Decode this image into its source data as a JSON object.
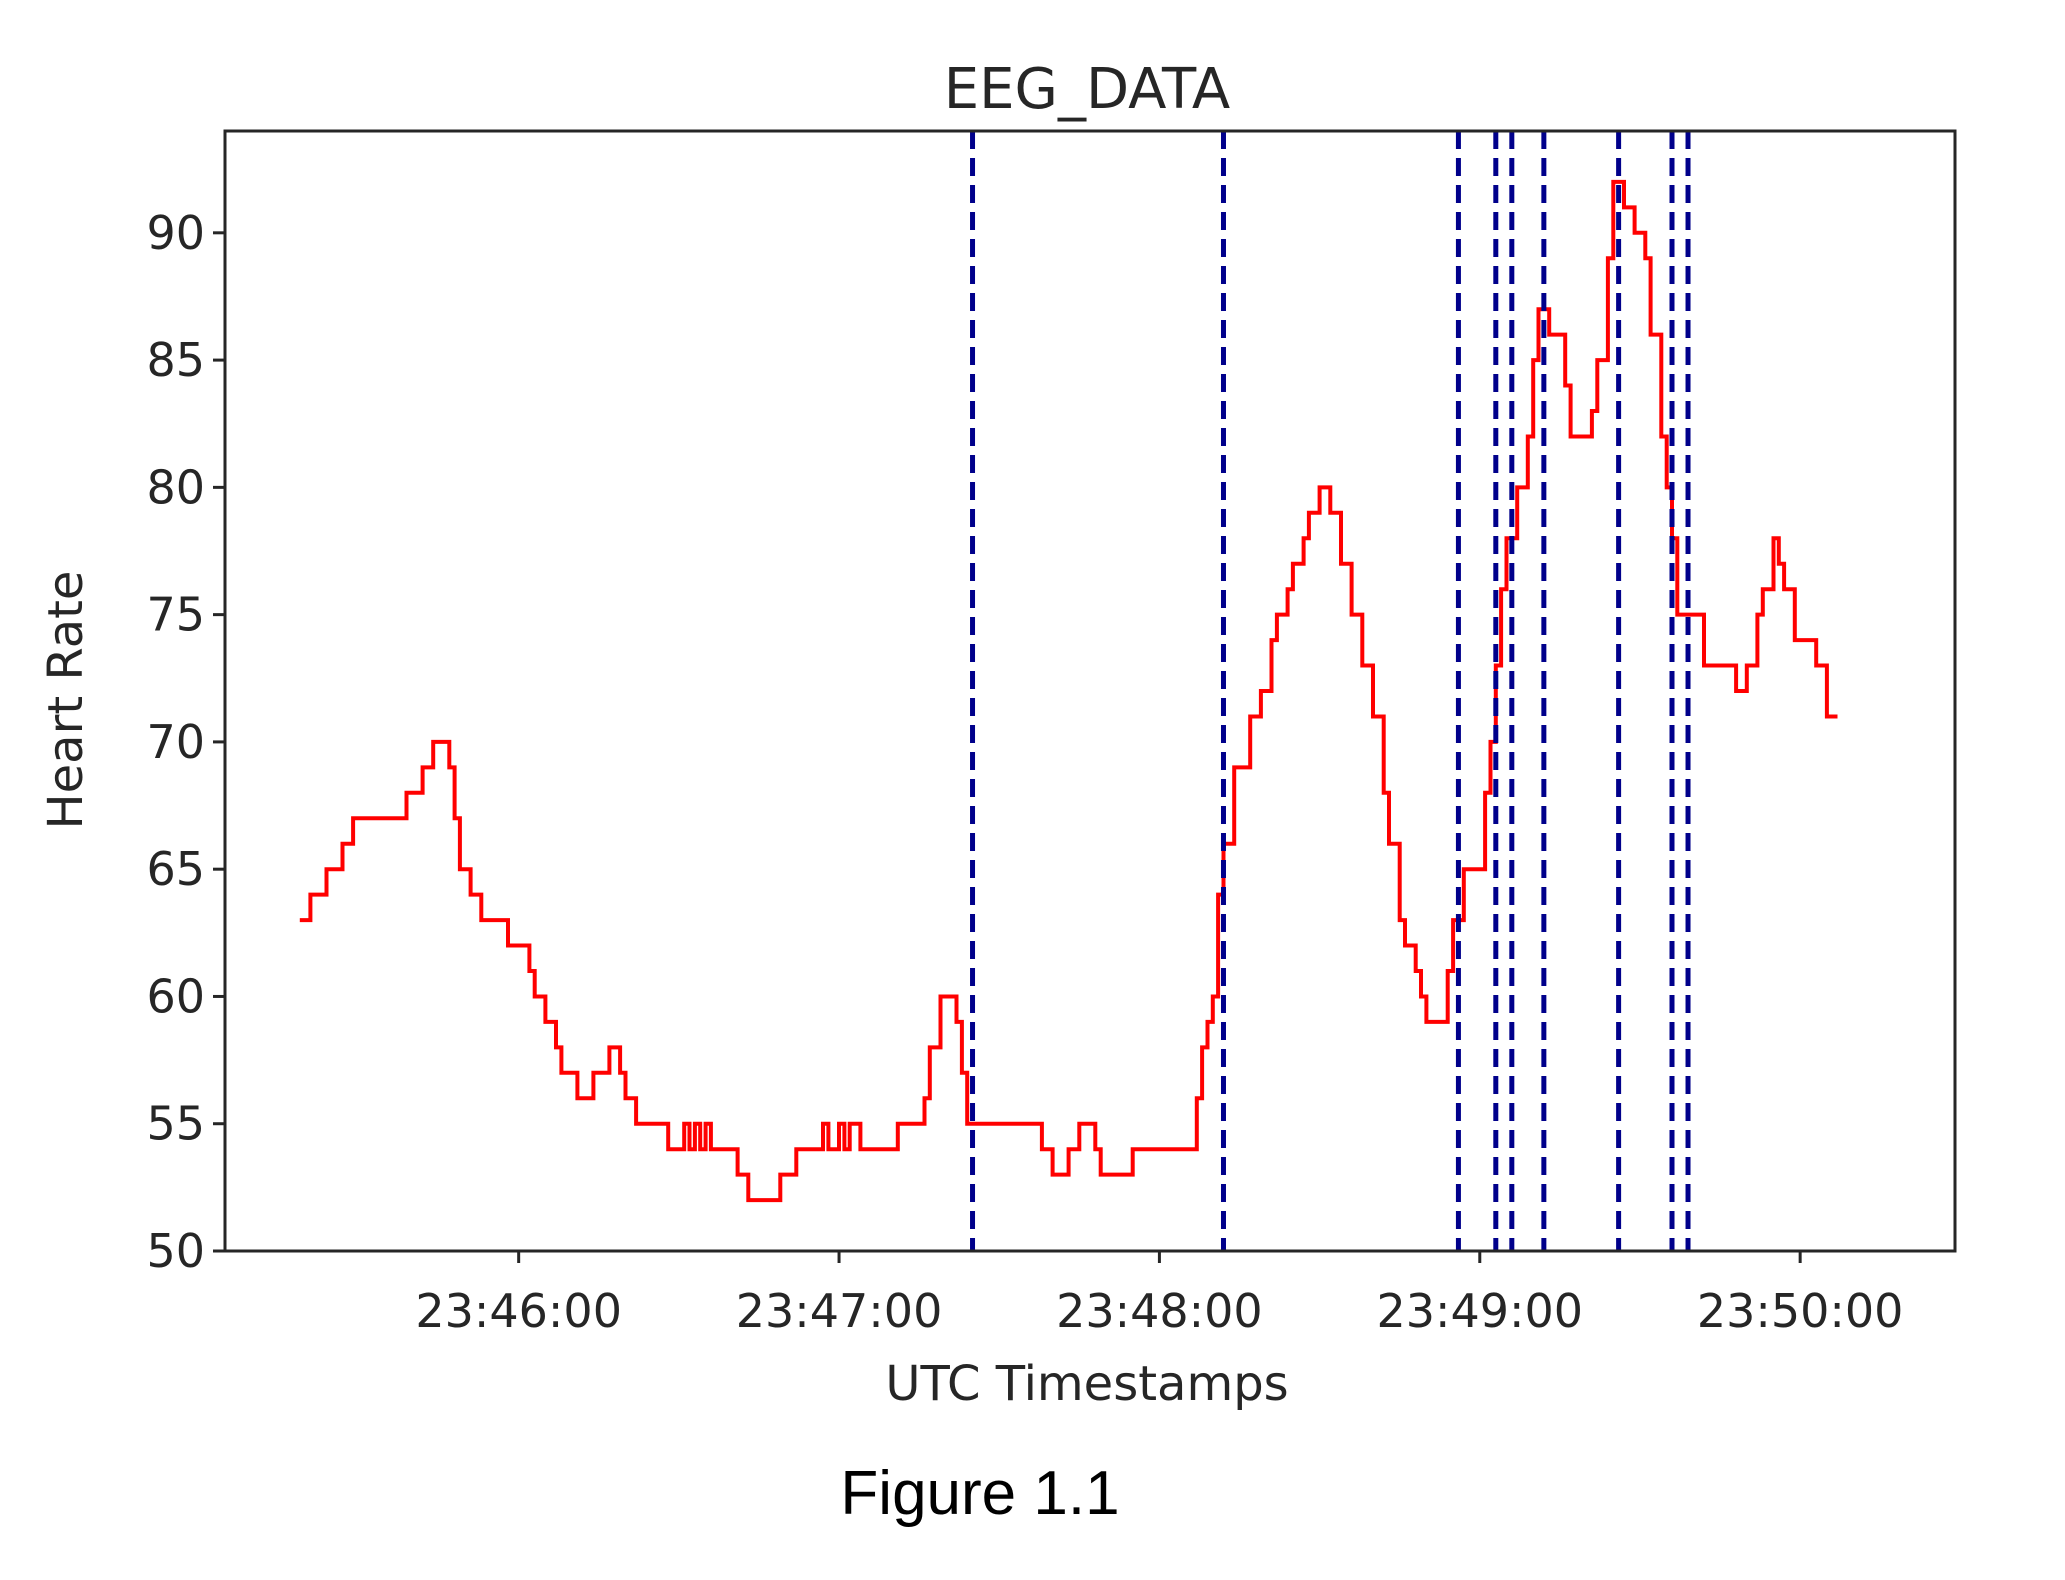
{
  "figure_caption": "Figure 1.1",
  "chart_data": {
    "type": "line",
    "title": "EEG_DATA",
    "xlabel": "UTC Timestamps",
    "ylabel": "Heart Rate",
    "xlim": [
      "23:45:05",
      "23:50:29"
    ],
    "ylim": [
      50,
      94
    ],
    "y_ticks": [
      50,
      55,
      60,
      65,
      70,
      75,
      80,
      85,
      90
    ],
    "x_ticks": [
      "23:46:00",
      "23:47:00",
      "23:48:00",
      "23:49:00",
      "23:50:00"
    ],
    "grid": false,
    "series": [
      {
        "color": "#ff0000",
        "step": true,
        "points": [
          [
            "23:45:19",
            63
          ],
          [
            "23:45:21",
            64
          ],
          [
            "23:45:24",
            65
          ],
          [
            "23:45:27",
            66
          ],
          [
            "23:45:29",
            67
          ],
          [
            "23:45:39",
            68
          ],
          [
            "23:45:42",
            69
          ],
          [
            "23:45:44",
            70
          ],
          [
            "23:45:47",
            69
          ],
          [
            "23:45:48",
            67
          ],
          [
            "23:45:49",
            65
          ],
          [
            "23:45:51",
            64
          ],
          [
            "23:45:53",
            63
          ],
          [
            "23:45:58",
            62
          ],
          [
            "23:46:02",
            61
          ],
          [
            "23:46:03",
            60
          ],
          [
            "23:46:05",
            59
          ],
          [
            "23:46:07",
            58
          ],
          [
            "23:46:08",
            57
          ],
          [
            "23:46:11",
            56
          ],
          [
            "23:46:14",
            57
          ],
          [
            "23:46:17",
            58
          ],
          [
            "23:46:19",
            57
          ],
          [
            "23:46:20",
            56
          ],
          [
            "23:46:22",
            55
          ],
          [
            "23:46:28",
            54
          ],
          [
            "23:46:31",
            55
          ],
          [
            "23:46:32",
            54
          ],
          [
            "23:46:33",
            55
          ],
          [
            "23:46:34",
            54
          ],
          [
            "23:46:35",
            55
          ],
          [
            "23:46:36",
            54
          ],
          [
            "23:46:41",
            53
          ],
          [
            "23:46:43",
            52
          ],
          [
            "23:46:49",
            53
          ],
          [
            "23:46:52",
            54
          ],
          [
            "23:46:57",
            55
          ],
          [
            "23:46:58",
            54
          ],
          [
            "23:47:00",
            55
          ],
          [
            "23:47:01",
            54
          ],
          [
            "23:47:02",
            55
          ],
          [
            "23:47:04",
            54
          ],
          [
            "23:47:11",
            55
          ],
          [
            "23:47:16",
            56
          ],
          [
            "23:47:17",
            58
          ],
          [
            "23:47:19",
            60
          ],
          [
            "23:47:22",
            59
          ],
          [
            "23:47:23",
            57
          ],
          [
            "23:47:24",
            55
          ],
          [
            "23:47:38",
            54
          ],
          [
            "23:47:40",
            53
          ],
          [
            "23:47:43",
            54
          ],
          [
            "23:47:45",
            55
          ],
          [
            "23:47:48",
            54
          ],
          [
            "23:47:49",
            53
          ],
          [
            "23:47:55",
            54
          ],
          [
            "23:48:07",
            56
          ],
          [
            "23:48:08",
            58
          ],
          [
            "23:48:09",
            59
          ],
          [
            "23:48:10",
            60
          ],
          [
            "23:48:11",
            64
          ],
          [
            "23:48:12",
            66
          ],
          [
            "23:48:14",
            69
          ],
          [
            "23:48:17",
            71
          ],
          [
            "23:48:19",
            72
          ],
          [
            "23:48:21",
            74
          ],
          [
            "23:48:22",
            75
          ],
          [
            "23:48:24",
            76
          ],
          [
            "23:48:25",
            77
          ],
          [
            "23:48:27",
            78
          ],
          [
            "23:48:28",
            79
          ],
          [
            "23:48:30",
            80
          ],
          [
            "23:48:32",
            79
          ],
          [
            "23:48:34",
            77
          ],
          [
            "23:48:36",
            75
          ],
          [
            "23:48:38",
            73
          ],
          [
            "23:48:40",
            71
          ],
          [
            "23:48:42",
            68
          ],
          [
            "23:48:43",
            66
          ],
          [
            "23:48:45",
            63
          ],
          [
            "23:48:46",
            62
          ],
          [
            "23:48:48",
            61
          ],
          [
            "23:48:49",
            60
          ],
          [
            "23:48:50",
            59
          ],
          [
            "23:48:54",
            61
          ],
          [
            "23:48:55",
            63
          ],
          [
            "23:48:57",
            65
          ],
          [
            "23:49:01",
            68
          ],
          [
            "23:49:02",
            70
          ],
          [
            "23:49:03",
            73
          ],
          [
            "23:49:04",
            76
          ],
          [
            "23:49:05",
            78
          ],
          [
            "23:49:07",
            80
          ],
          [
            "23:49:09",
            82
          ],
          [
            "23:49:10",
            85
          ],
          [
            "23:49:11",
            87
          ],
          [
            "23:49:13",
            86
          ],
          [
            "23:49:16",
            84
          ],
          [
            "23:49:17",
            82
          ],
          [
            "23:49:21",
            83
          ],
          [
            "23:49:22",
            85
          ],
          [
            "23:49:24",
            89
          ],
          [
            "23:49:25",
            92
          ],
          [
            "23:49:27",
            91
          ],
          [
            "23:49:29",
            90
          ],
          [
            "23:49:31",
            89
          ],
          [
            "23:49:32",
            86
          ],
          [
            "23:49:34",
            82
          ],
          [
            "23:49:35",
            80
          ],
          [
            "23:49:36",
            78
          ],
          [
            "23:49:37",
            75
          ],
          [
            "23:49:42",
            73
          ],
          [
            "23:49:48",
            72
          ],
          [
            "23:49:50",
            73
          ],
          [
            "23:49:52",
            75
          ],
          [
            "23:49:53",
            76
          ],
          [
            "23:49:55",
            78
          ],
          [
            "23:49:56",
            77
          ],
          [
            "23:49:57",
            76
          ],
          [
            "23:49:59",
            74
          ],
          [
            "23:50:03",
            73
          ],
          [
            "23:50:05",
            71
          ],
          [
            "23:50:07",
            71
          ]
        ]
      }
    ],
    "vertical_lines": {
      "color": "#00008b",
      "style": "dashed",
      "x": [
        "23:47:25",
        "23:48:12",
        "23:48:56",
        "23:49:03",
        "23:49:06",
        "23:49:12",
        "23:49:26",
        "23:49:36",
        "23:49:39"
      ]
    }
  }
}
